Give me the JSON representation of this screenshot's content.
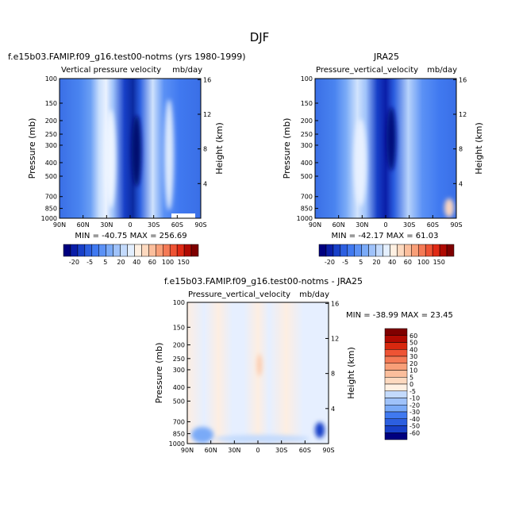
{
  "page_title": "DJF",
  "chart_data": [
    {
      "type": "heatmap",
      "case_title": "f.e15b03.FAMIP.f09_g16.test00-notms (yrs 1980-1999)",
      "title": "Vertical pressure velocity",
      "units": "mb/day",
      "ylabel": "Pressure (mb)",
      "ylabel_right": "Height (km)",
      "x_ticks": [
        "90N",
        "60N",
        "30N",
        "0",
        "30S",
        "60S",
        "90S"
      ],
      "y_ticks": [
        "100",
        "150",
        "200",
        "250",
        "300",
        "400",
        "500",
        "700",
        "850",
        "1000"
      ],
      "y_ticks_right": [
        "16",
        "12",
        "8",
        "4"
      ],
      "ylim": [
        1000,
        100
      ],
      "stats": "MIN = -40.75   MAX = 256.69",
      "colorbar": {
        "orientation": "horizontal",
        "colors": [
          "#00007f",
          "#0a1ea8",
          "#1840c8",
          "#2c5fe0",
          "#4079f0",
          "#5b91f5",
          "#7aaaf7",
          "#9fc2fa",
          "#c3dafc",
          "#e4effe",
          "#fff0e2",
          "#fdd9bf",
          "#fbbe9c",
          "#f89f78",
          "#f47a56",
          "#ee5334",
          "#e02a15",
          "#b00a02",
          "#7f0000"
        ],
        "tick_labels": [
          "-20",
          "-5",
          "5",
          "20",
          "40",
          "60",
          "100",
          "150"
        ]
      }
    },
    {
      "type": "heatmap",
      "case_title": "JRA25",
      "title": "Pressure_vertical_velocity",
      "units": "mb/day",
      "ylabel": "Pressure (mb)",
      "ylabel_right": "Height (km)",
      "x_ticks": [
        "90N",
        "60N",
        "30N",
        "0",
        "30S",
        "60S",
        "90S"
      ],
      "y_ticks": [
        "100",
        "150",
        "200",
        "250",
        "300",
        "400",
        "500",
        "700",
        "850",
        "1000"
      ],
      "y_ticks_right": [
        "16",
        "12",
        "8",
        "4"
      ],
      "ylim": [
        1000,
        100
      ],
      "stats": "MIN = -42.17   MAX =  61.03",
      "colorbar": {
        "orientation": "horizontal",
        "colors": [
          "#00007f",
          "#0a1ea8",
          "#1840c8",
          "#2c5fe0",
          "#4079f0",
          "#5b91f5",
          "#7aaaf7",
          "#9fc2fa",
          "#c3dafc",
          "#e4effe",
          "#fff0e2",
          "#fdd9bf",
          "#fbbe9c",
          "#f89f78",
          "#f47a56",
          "#ee5334",
          "#e02a15",
          "#b00a02",
          "#7f0000"
        ],
        "tick_labels": [
          "-20",
          "-5",
          "5",
          "20",
          "40",
          "60",
          "100",
          "150"
        ]
      }
    },
    {
      "type": "heatmap",
      "case_title": "f.e15b03.FAMIP.f09_g16.test00-notms - JRA25",
      "title": "Pressure_vertical_velocity",
      "units": "mb/day",
      "ylabel": "Pressure (mb)",
      "ylabel_right": "Height (km)",
      "x_ticks": [
        "90N",
        "60N",
        "30N",
        "0",
        "30S",
        "60S",
        "90S"
      ],
      "y_ticks": [
        "100",
        "150",
        "200",
        "250",
        "300",
        "400",
        "500",
        "700",
        "850",
        "1000"
      ],
      "y_ticks_right": [
        "16",
        "12",
        "8",
        "4"
      ],
      "ylim": [
        1000,
        100
      ],
      "stats": "MIN = -38.99   MAX =  23.45",
      "colorbar": {
        "orientation": "vertical",
        "levels": [
          "60",
          "50",
          "40",
          "30",
          "20",
          "10",
          "5",
          "0",
          "-5",
          "-10",
          "-20",
          "-30",
          "-40",
          "-50",
          "-60"
        ],
        "colors": [
          "#7f0000",
          "#b00a02",
          "#d8280f",
          "#ee5334",
          "#f47a56",
          "#f89f78",
          "#fbbe9c",
          "#fdd9bf",
          "#fff0e2",
          "#c3dafc",
          "#9fc2fa",
          "#7aaaf7",
          "#4079f0",
          "#2c5fe0",
          "#1840c8",
          "#00007f"
        ]
      }
    }
  ]
}
